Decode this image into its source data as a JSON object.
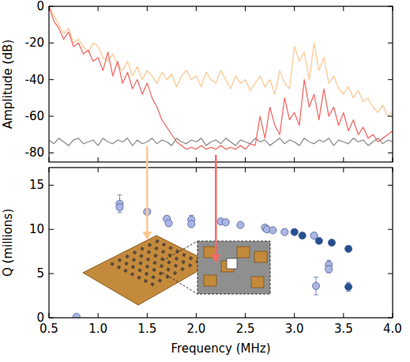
{
  "chart_data": [
    {
      "type": "line",
      "ylabel": "Amplitude (dB)",
      "tick_labels": "y",
      "grid": false,
      "xlim": [
        0.5,
        4.0
      ],
      "ylim": [
        -85,
        0
      ],
      "xticks": [
        0.5,
        1,
        1.5,
        2,
        2.5,
        3,
        3.5,
        4
      ],
      "yticks": [
        -80,
        -60,
        -40,
        -20,
        0
      ],
      "x": [
        0.5,
        0.55,
        0.6,
        0.65,
        0.7,
        0.75,
        0.8,
        0.85,
        0.9,
        0.95,
        1.0,
        1.05,
        1.1,
        1.15,
        1.2,
        1.25,
        1.3,
        1.35,
        1.4,
        1.45,
        1.5,
        1.55,
        1.6,
        1.65,
        1.7,
        1.75,
        1.8,
        1.85,
        1.9,
        1.95,
        2.0,
        2.05,
        2.1,
        2.15,
        2.2,
        2.25,
        2.3,
        2.35,
        2.4,
        2.45,
        2.5,
        2.55,
        2.6,
        2.65,
        2.7,
        2.75,
        2.8,
        2.85,
        2.9,
        2.95,
        3.0,
        3.05,
        3.1,
        3.15,
        3.2,
        3.25,
        3.3,
        3.35,
        3.4,
        3.45,
        3.5,
        3.55,
        3.6,
        3.65,
        3.7,
        3.75,
        3.8,
        3.85,
        3.9,
        3.95,
        4.0
      ],
      "series": [
        {
          "color": "#8c8c8c",
          "values": [
            -73,
            -75,
            -72,
            -74,
            -76,
            -73,
            -72,
            -75,
            -74,
            -73,
            -76,
            -72,
            -74,
            -75,
            -73,
            -74,
            -72,
            -76,
            -73,
            -75,
            -74,
            -72,
            -75,
            -73,
            -74,
            -76,
            -72,
            -74,
            -75,
            -73,
            -74,
            -72,
            -76,
            -74,
            -73,
            -75,
            -72,
            -74,
            -76,
            -73,
            -74,
            -75,
            -72,
            -74,
            -73,
            -76,
            -74,
            -72,
            -75,
            -73,
            -74,
            -76,
            -72,
            -74,
            -75,
            -73,
            -74,
            -72,
            -76,
            -73,
            -74,
            -75,
            -72,
            -74,
            -73,
            -76,
            -74,
            -72,
            -75,
            -73,
            -74
          ]
        },
        {
          "color": "#fcc995",
          "values": [
            0,
            -5,
            -10,
            -15,
            -12,
            -20,
            -18,
            -22,
            -25,
            -20,
            -22,
            -28,
            -30,
            -26,
            -32,
            -35,
            -30,
            -38,
            -33,
            -40,
            -35,
            -38,
            -42,
            -36,
            -40,
            -37,
            -44,
            -38,
            -35,
            -40,
            -38,
            -44,
            -36,
            -40,
            -42,
            -35,
            -40,
            -45,
            -38,
            -42,
            -40,
            -46,
            -42,
            -38,
            -44,
            -40,
            -48,
            -35,
            -42,
            -45,
            -22,
            -30,
            -25,
            -40,
            -20,
            -35,
            -28,
            -42,
            -38,
            -45,
            -48,
            -44,
            -50,
            -46,
            -52,
            -50,
            -55,
            -58,
            -54,
            -60,
            -58
          ]
        },
        {
          "color": "#f26b67",
          "values": [
            0,
            -8,
            -12,
            -18,
            -14,
            -22,
            -20,
            -26,
            -24,
            -30,
            -28,
            -35,
            -25,
            -38,
            -30,
            -42,
            -36,
            -45,
            -40,
            -48,
            -42,
            -50,
            -55,
            -62,
            -66,
            -70,
            -74,
            -76,
            -78,
            -77,
            -78,
            -76,
            -78,
            -77,
            -78,
            -76,
            -78,
            -77,
            -78,
            -76,
            -78,
            -75,
            -76,
            -60,
            -72,
            -55,
            -65,
            -70,
            -50,
            -62,
            -58,
            -65,
            -40,
            -55,
            -48,
            -62,
            -45,
            -60,
            -55,
            -65,
            -58,
            -68,
            -62,
            -70,
            -66,
            -72,
            -70,
            -74,
            -72,
            -70,
            -68
          ]
        }
      ]
    },
    {
      "type": "scatter",
      "xlabel": "Frequency (MHz)",
      "ylabel": "Q (millions)",
      "grid": false,
      "marker": "circle",
      "xlim": [
        0.5,
        4.0
      ],
      "ylim": [
        0,
        17
      ],
      "xticks": [
        {
          "value": 0.5,
          "label": "0.5"
        },
        {
          "value": 1,
          "label": "1.0"
        },
        {
          "value": 1.5,
          "label": "1.5"
        },
        {
          "value": 2,
          "label": "2.0"
        },
        {
          "value": 2.5,
          "label": "2.5"
        },
        {
          "value": 3,
          "label": "3.0"
        },
        {
          "value": 3.5,
          "label": "3.5"
        },
        {
          "value": 4,
          "label": "4.0"
        }
      ],
      "yticks": [
        0,
        5,
        10,
        15
      ],
      "series": [
        {
          "color": "#aab5e3",
          "x": [
            0.78,
            1.22,
            1.22,
            1.5,
            1.7,
            1.72,
            1.95,
            1.95,
            2.25,
            2.3,
            2.45,
            2.7,
            2.72,
            2.78,
            2.9,
            3.2,
            3.22,
            3.35,
            3.35
          ],
          "values": [
            0.1,
            12.9,
            12.5,
            12.0,
            11.2,
            10.7,
            11.1,
            10.6,
            10.9,
            10.8,
            10.5,
            10.2,
            10.0,
            9.9,
            9.7,
            9.3,
            3.6,
            6.0,
            5.5
          ],
          "errors": [
            0.1,
            1.0,
            0.3,
            0.2,
            0.3,
            0.3,
            0.5,
            0.2,
            0.2,
            0.2,
            0.2,
            0.2,
            0.2,
            0.2,
            0.2,
            0.2,
            1.0,
            0.5,
            0.4
          ]
        },
        {
          "color": "#25508f",
          "x": [
            3.0,
            3.08,
            3.25,
            3.38,
            3.55,
            3.55
          ],
          "values": [
            9.7,
            9.3,
            8.7,
            8.5,
            7.8,
            3.5
          ],
          "errors": [
            0.2,
            0.2,
            0.2,
            0.2,
            0.2,
            0.5
          ]
        }
      ]
    }
  ]
}
